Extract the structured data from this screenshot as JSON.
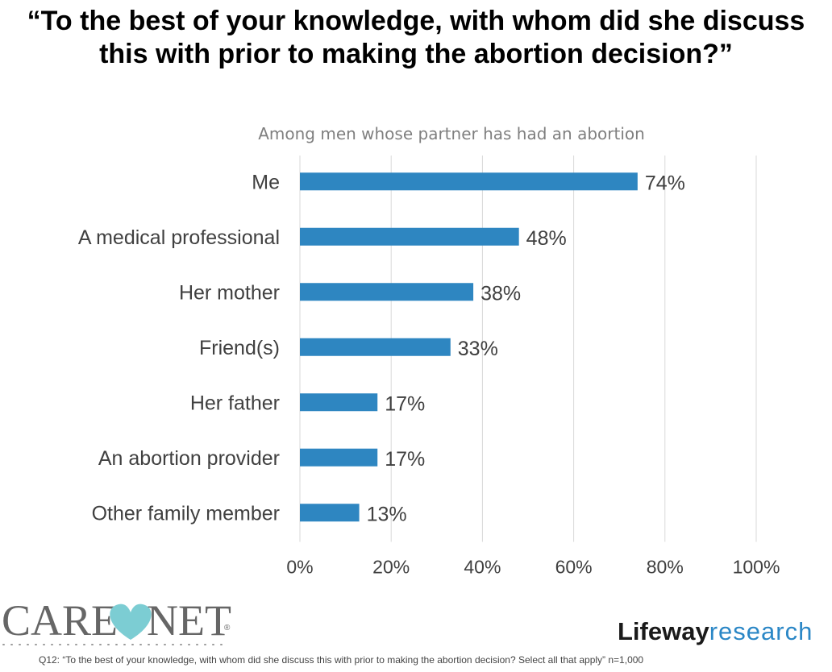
{
  "title": "“To the best of your knowledge, with whom did she discuss this with prior to making the abortion decision?”",
  "subtitle": "Among men whose partner has had an abortion",
  "chart_data": {
    "type": "bar",
    "orientation": "horizontal",
    "categories": [
      "Me",
      "A medical professional",
      "Her mother",
      "Friend(s)",
      "Her father",
      "An abortion provider",
      "Other family member"
    ],
    "values": [
      74,
      48,
      38,
      33,
      17,
      17,
      13
    ],
    "value_labels": [
      "74%",
      "48%",
      "38%",
      "33%",
      "17%",
      "17%",
      "13%"
    ],
    "x_ticks": [
      "0%",
      "20%",
      "40%",
      "60%",
      "80%",
      "100%"
    ],
    "xlim": [
      0,
      100
    ],
    "grid": true,
    "bar_color": "#2e86c1",
    "subtitle": "Among men whose partner has had an abortion"
  },
  "logos": {
    "carenet": {
      "left": "CARE",
      "right": "NET",
      "mark": "®",
      "heart_color": "#7ccdd3",
      "text_color": "#666666"
    },
    "lifeway": {
      "part1": "Lifeway",
      "part2": "research"
    }
  },
  "footnote": {
    "question": "Q12: “To the best of your knowledge, with whom did she discuss this with prior to making the abortion decision? Select all that apply”",
    "sample": "n=1,000"
  }
}
